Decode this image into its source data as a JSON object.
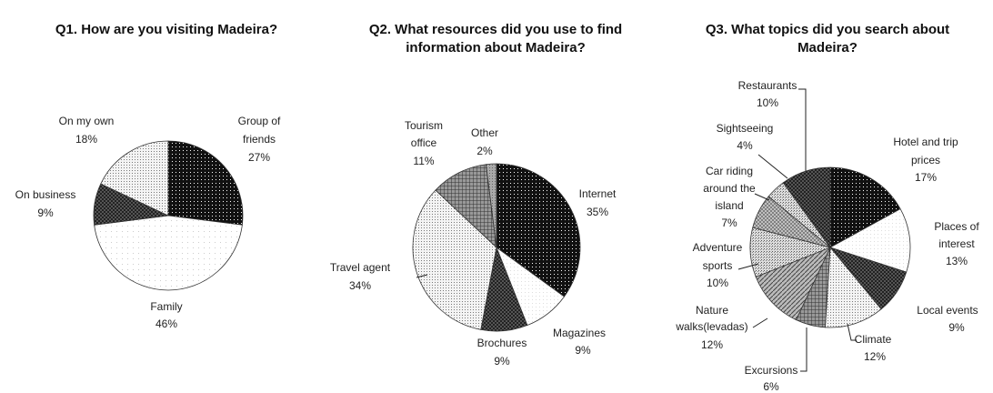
{
  "chart_data": [
    {
      "type": "pie",
      "title": "Q1. How are you visiting Madeira?",
      "slices": [
        {
          "label": "Group of friends",
          "value": 27,
          "value_label": "27%",
          "pattern": "dotsDark"
        },
        {
          "label": "Family",
          "value": 46,
          "value_label": "46%",
          "pattern": "whiteHatch"
        },
        {
          "label": "On business",
          "value": 9,
          "value_label": "9%",
          "pattern": "checker"
        },
        {
          "label": "On my own",
          "value": 18,
          "value_label": "18%",
          "pattern": "dotsLight"
        }
      ]
    },
    {
      "type": "pie",
      "title": "Q2. What resources did you use to find information about Madeira?",
      "slices": [
        {
          "label": "Internet",
          "value": 35,
          "value_label": "35%",
          "pattern": "dotsDark"
        },
        {
          "label": "Magazines",
          "value": 9,
          "value_label": "9%",
          "pattern": "white"
        },
        {
          "label": "Brochures",
          "value": 9,
          "value_label": "9%",
          "pattern": "checker"
        },
        {
          "label": "Travel agent",
          "value": 34,
          "value_label": "34%",
          "pattern": "dotsLight"
        },
        {
          "label": "Tourism office",
          "value": 11,
          "value_label": "11%",
          "pattern": "grid"
        },
        {
          "label": "Other",
          "value": 2,
          "value_label": "2%",
          "pattern": "gray"
        }
      ]
    },
    {
      "type": "pie",
      "title": "Q3. What topics did you search about Madeira?",
      "slices": [
        {
          "label": "Hotel and trip prices",
          "value": 17,
          "value_label": "17%",
          "pattern": "dotsDark"
        },
        {
          "label": "Places of interest",
          "value": 13,
          "value_label": "13%",
          "pattern": "white"
        },
        {
          "label": "Local events",
          "value": 9,
          "value_label": "9%",
          "pattern": "checker"
        },
        {
          "label": "Climate",
          "value": 12,
          "value_label": "12%",
          "pattern": "dotsLight"
        },
        {
          "label": "Excursions",
          "value": 6,
          "value_label": "6%",
          "pattern": "grid"
        },
        {
          "label": "Nature walks(levadas)",
          "value": 12,
          "value_label": "12%",
          "pattern": "diag"
        },
        {
          "label": "Adventure sports",
          "value": 10,
          "value_label": "10%",
          "pattern": "dotsMid"
        },
        {
          "label": "Car riding around the island",
          "value": 7,
          "value_label": "7%",
          "pattern": "hatch2"
        },
        {
          "label": "Sightseeing",
          "value": 4,
          "value_label": "4%",
          "pattern": "dotsMid"
        },
        {
          "label": "Restaurants",
          "value": 10,
          "value_label": "10%",
          "pattern": "checker"
        }
      ]
    }
  ]
}
